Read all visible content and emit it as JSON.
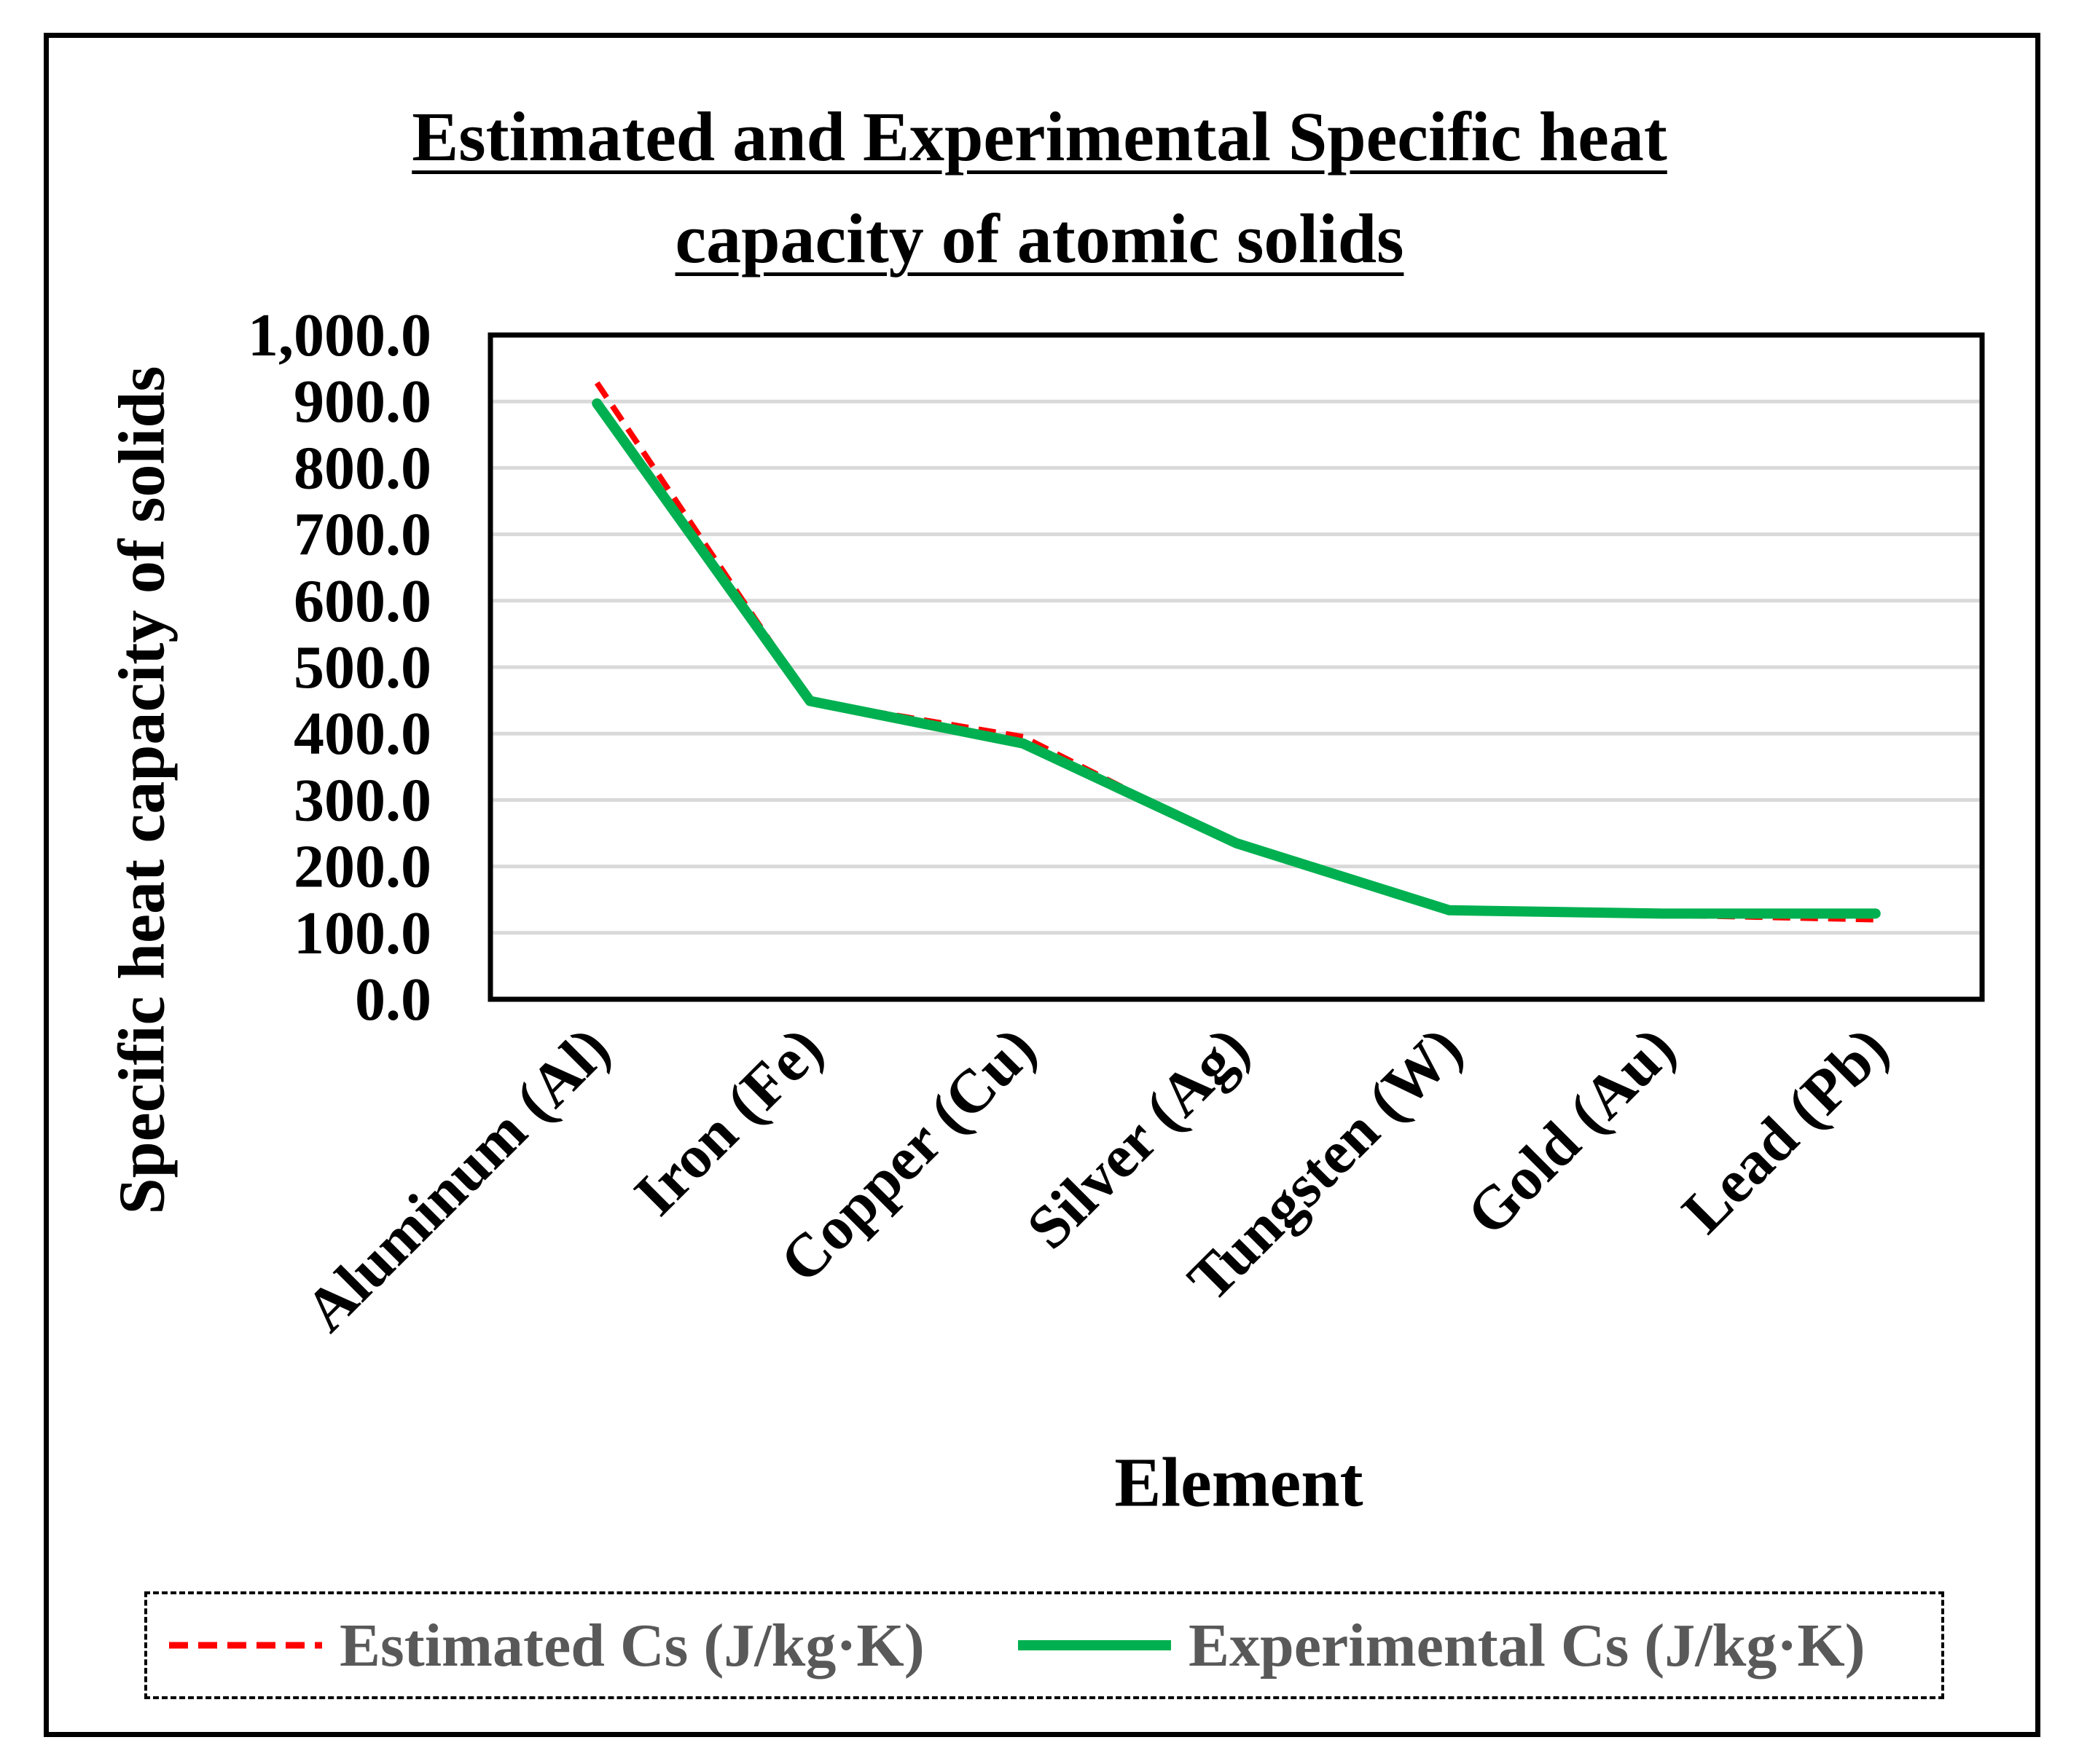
{
  "chart_data": {
    "type": "line",
    "title": "Estimated and Experimental Specific heat capacity of atomic solids",
    "title_lines": [
      "Estimated and Experimental Specific heat",
      "capacity of atomic solids"
    ],
    "xlabel": "Element",
    "ylabel": "Specific heat capacity of solids",
    "categories": [
      "Aluminum (Al)",
      "Iron (Fe)",
      "Copper (Cu)",
      "Silver (Ag)",
      "Tungsten (W)",
      "Gold (Au)",
      "Lead (Pb)"
    ],
    "ylim": [
      0,
      1000
    ],
    "yticks": [
      0,
      100,
      200,
      300,
      400,
      500,
      600,
      700,
      800,
      900,
      1000
    ],
    "ytick_labels": [
      "0.0",
      "100.0",
      "200.0",
      "300.0",
      "400.0",
      "500.0",
      "600.0",
      "700.0",
      "800.0",
      "900.0",
      "1,000.0"
    ],
    "grid": true,
    "legend_position": "bottom",
    "series": [
      {
        "name": "Estimated Cs (J/kg·K)",
        "values": [
          928,
          449,
          395,
          232,
          134,
          127,
          120
        ],
        "color": "#ff0000",
        "style": "dashed"
      },
      {
        "name": "Experimental Cs (J/kg·K)",
        "values": [
          897,
          449,
          385,
          235,
          134,
          129,
          129
        ],
        "color": "#00b050",
        "style": "solid"
      }
    ]
  }
}
